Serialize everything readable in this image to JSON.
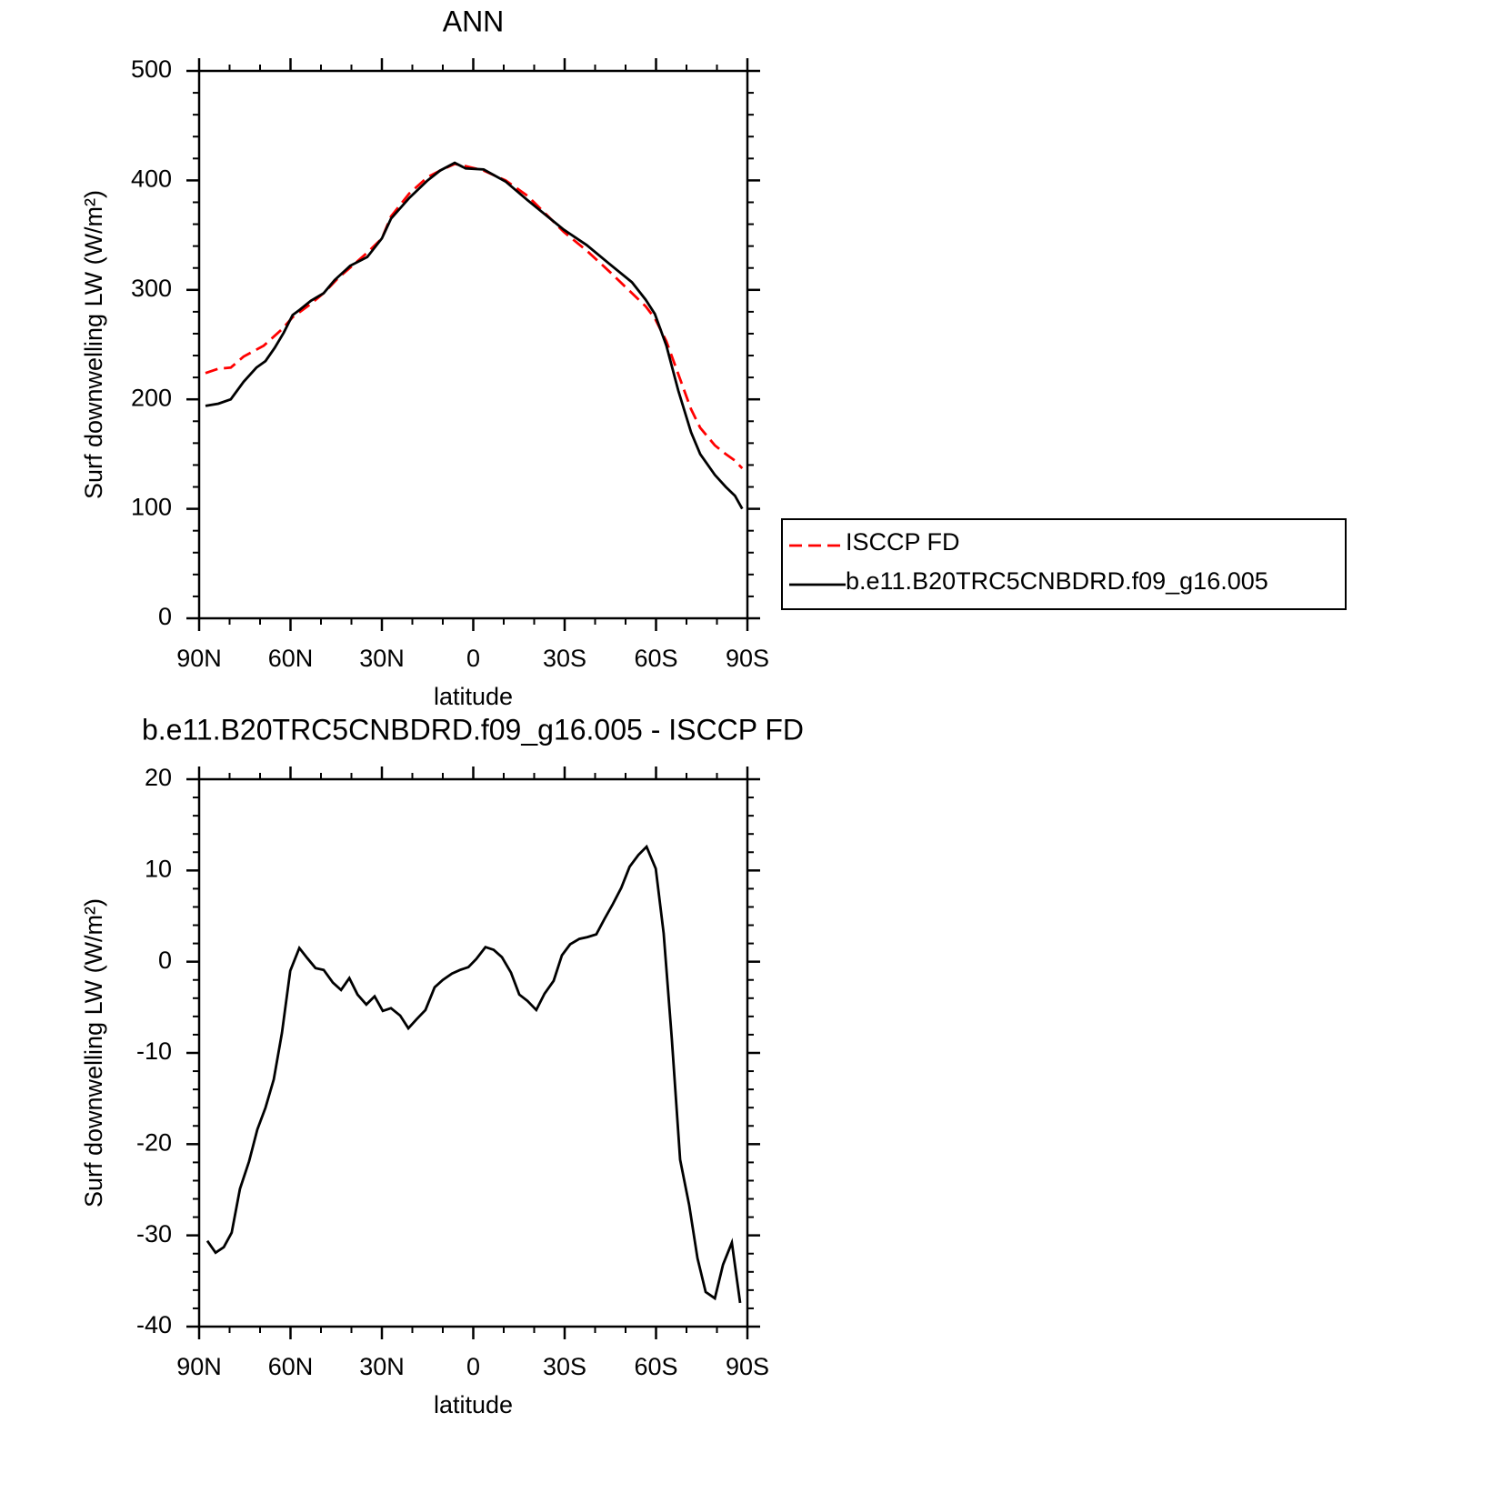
{
  "chart_data": [
    {
      "type": "line",
      "title": "ANN",
      "xlabel": "latitude",
      "ylabel": "Surf downwelling LW (W/m²)",
      "xlim": [
        90,
        -90
      ],
      "xticks": [
        {
          "value": 90,
          "label": "90N"
        },
        {
          "value": 60,
          "label": "60N"
        },
        {
          "value": 30,
          "label": "30N"
        },
        0,
        {
          "value": -30,
          "label": "30S"
        },
        {
          "value": -60,
          "label": "60S"
        },
        {
          "value": -90,
          "label": "90S"
        }
      ],
      "xminorticks": [
        80,
        70,
        50,
        40,
        20,
        10,
        -10,
        -20,
        -40,
        -50,
        -70,
        -80
      ],
      "ylim": [
        0,
        500
      ],
      "yticks": [
        0,
        100,
        200,
        300,
        400,
        500
      ],
      "yminorticks": [
        20,
        40,
        60,
        80,
        120,
        140,
        160,
        180,
        220,
        240,
        260,
        280,
        320,
        340,
        360,
        380,
        420,
        440,
        460,
        480
      ],
      "legend": "right",
      "series": [
        {
          "name": "ISCCP FD",
          "color": "#ff0000",
          "dash": "dashed",
          "x": [
            87.9,
            83.7,
            79.6,
            75.4,
            68.8,
            62.8,
            59.3,
            53.9,
            49.1,
            44.3,
            38.9,
            34.8,
            30.0,
            27.0,
            21.0,
            15.0,
            10.9,
            6.1,
            2.5,
            -3.4,
            -10.6,
            -17.8,
            -29.7,
            -37.2,
            -44.6,
            -52.1,
            -56.6,
            -59.6,
            -63.4,
            -67.3,
            -71.5,
            -74.5,
            -79.3,
            -82.9,
            -85.9,
            -88.3
          ],
          "values": [
            224,
            228,
            229,
            239,
            249,
            264,
            275,
            286,
            297,
            311,
            324,
            334,
            347,
            367,
            388,
            403,
            409,
            415,
            413,
            409,
            400,
            386,
            353,
            336,
            317,
            297,
            285,
            274,
            253,
            223,
            191,
            174,
            158,
            150,
            144,
            137
          ]
        },
        {
          "name": "b.e11.B20TRC5CNBDRD.f09_g16.005",
          "color": "#000000",
          "dash": "solid",
          "x": [
            87.9,
            83.7,
            79.6,
            75.4,
            71.2,
            68.2,
            65.2,
            62.2,
            59.3,
            56.9,
            53.3,
            49.1,
            45.5,
            40.4,
            34.8,
            30.0,
            27.0,
            21.0,
            15.0,
            10.9,
            6.1,
            2.5,
            -3.4,
            -10.6,
            -17.8,
            -29.7,
            -37.2,
            -44.6,
            -52.1,
            -56.6,
            -59.6,
            -63.4,
            -67.3,
            -71.5,
            -74.5,
            -79.3,
            -82.9,
            -85.9,
            -88.3
          ],
          "values": [
            194,
            196,
            200,
            216,
            229,
            235,
            247,
            261,
            277,
            282,
            290,
            297,
            309,
            322,
            330,
            347,
            365,
            384,
            400,
            409,
            416,
            411,
            410,
            399,
            382,
            355,
            341,
            324,
            307,
            291,
            278,
            249,
            208,
            170,
            150,
            131,
            120,
            112,
            100
          ]
        }
      ]
    },
    {
      "type": "line",
      "title": "b.e11.B20TRC5CNBDRD.f09_g16.005 - ISCCP FD",
      "xlabel": "latitude",
      "ylabel": "Surf downwelling LW (W/m²)",
      "xlim": [
        90,
        -90
      ],
      "xticks": [
        {
          "value": 90,
          "label": "90N"
        },
        {
          "value": 60,
          "label": "60N"
        },
        {
          "value": 30,
          "label": "30N"
        },
        0,
        {
          "value": -30,
          "label": "30S"
        },
        {
          "value": -60,
          "label": "60S"
        },
        {
          "value": -90,
          "label": "90S"
        }
      ],
      "xminorticks": [
        80,
        70,
        50,
        40,
        20,
        10,
        -10,
        -20,
        -40,
        -50,
        -70,
        -80
      ],
      "ylim": [
        -40,
        20
      ],
      "yticks": [
        -40,
        -30,
        -20,
        -10,
        0,
        10,
        20
      ],
      "yminorticks": [
        -38,
        -36,
        -34,
        -32,
        -28,
        -26,
        -24,
        -22,
        -18,
        -16,
        -14,
        -12,
        -8,
        -6,
        -4,
        -2,
        2,
        4,
        6,
        8,
        12,
        14,
        16,
        18
      ],
      "series": [
        {
          "color": "#000000",
          "dash": "solid",
          "x": [
            87.3,
            84.6,
            81.9,
            79.3,
            76.6,
            73.6,
            70.9,
            68.2,
            65.5,
            62.8,
            60.1,
            57.1,
            54.5,
            51.8,
            49.1,
            46.1,
            43.4,
            40.7,
            38.0,
            35.1,
            32.4,
            29.7,
            27.0,
            24.0,
            21.3,
            18.6,
            15.7,
            12.7,
            10.0,
            7.0,
            4.3,
            1.6,
            -1.0,
            -4.0,
            -6.7,
            -9.4,
            -12.4,
            -15.1,
            -17.8,
            -20.7,
            -23.4,
            -26.4,
            -29.1,
            -31.8,
            -34.8,
            -37.5,
            -40.4,
            -43.1,
            -45.8,
            -48.6,
            -51.3,
            -54.2,
            -56.9,
            -59.9,
            -62.5,
            -65.2,
            -67.9,
            -70.9,
            -73.6,
            -76.3,
            -79.3,
            -82.0,
            -84.9,
            -87.6
          ],
          "values": [
            -30.6,
            -31.9,
            -31.3,
            -29.7,
            -24.9,
            -21.9,
            -18.4,
            -16.0,
            -12.9,
            -7.8,
            -1.0,
            1.5,
            0.4,
            -0.7,
            -0.9,
            -2.3,
            -3.1,
            -1.8,
            -3.6,
            -4.7,
            -3.8,
            -5.4,
            -5.1,
            -5.9,
            -7.3,
            -6.3,
            -5.3,
            -2.8,
            -2.0,
            -1.3,
            -0.9,
            -0.6,
            0.3,
            1.6,
            1.3,
            0.5,
            -1.2,
            -3.6,
            -4.3,
            -5.3,
            -3.5,
            -2.1,
            0.7,
            1.9,
            2.5,
            2.7,
            3.0,
            4.7,
            6.3,
            8.1,
            10.4,
            11.7,
            12.6,
            10.2,
            3.1,
            -8.5,
            -21.7,
            -26.7,
            -32.5,
            -36.2,
            -36.9,
            -33.2,
            -30.8,
            -37.4
          ]
        }
      ]
    }
  ]
}
